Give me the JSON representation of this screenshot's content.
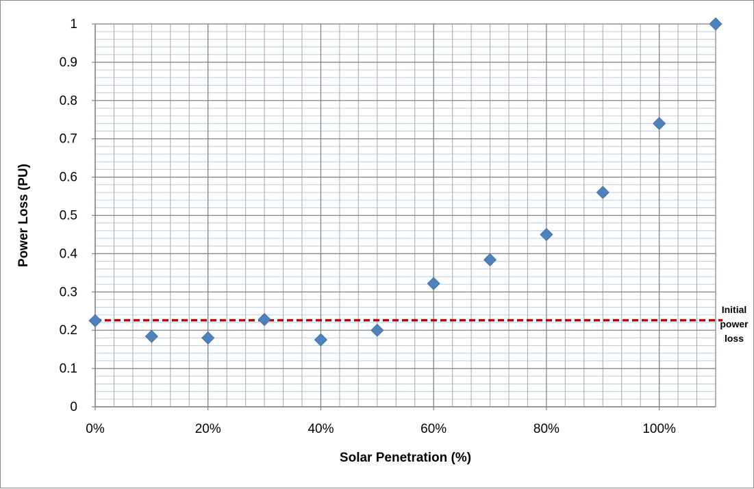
{
  "chart_data": {
    "type": "scatter",
    "xlabel": "Solar Penetration (%)",
    "ylabel": "Power Loss (PU)",
    "xlim": [
      0,
      110
    ],
    "ylim": [
      0,
      1
    ],
    "x_ticks": [
      "0%",
      "20%",
      "40%",
      "60%",
      "80%",
      "100%"
    ],
    "y_ticks": [
      "0",
      "0.1",
      "0.2",
      "0.3",
      "0.4",
      "0.5",
      "0.6",
      "0.7",
      "0.8",
      "0.9",
      "1"
    ],
    "grid": true,
    "series": [
      {
        "color": "#4f81bd",
        "marker": "diamond",
        "points": [
          {
            "x": 0,
            "y": 0.225
          },
          {
            "x": 10,
            "y": 0.184
          },
          {
            "x": 20,
            "y": 0.18
          },
          {
            "x": 30,
            "y": 0.228
          },
          {
            "x": 40,
            "y": 0.175
          },
          {
            "x": 50,
            "y": 0.2
          },
          {
            "x": 60,
            "y": 0.322
          },
          {
            "x": 70,
            "y": 0.384
          },
          {
            "x": 80,
            "y": 0.45
          },
          {
            "x": 90,
            "y": 0.56
          },
          {
            "x": 100,
            "y": 0.74
          },
          {
            "x": 110,
            "y": 1.0
          }
        ]
      }
    ],
    "reference_line": {
      "y": 0.226,
      "color": "#c00000",
      "style": "dashed",
      "label_lines": [
        "Initial",
        "power",
        "loss"
      ]
    }
  }
}
